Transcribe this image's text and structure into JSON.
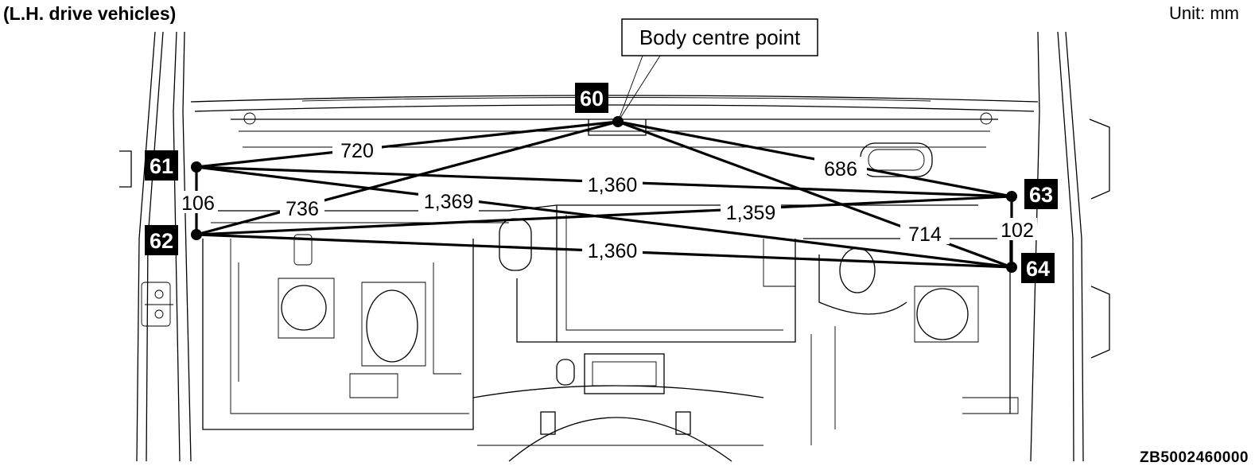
{
  "header": {
    "title": "(L.H. drive vehicles)",
    "unit": "Unit: mm"
  },
  "figure_id": "ZB5002460000",
  "callout": {
    "label": "Body centre point"
  },
  "points": [
    {
      "id": "60",
      "label": "60"
    },
    {
      "id": "61",
      "label": "61"
    },
    {
      "id": "62",
      "label": "62"
    },
    {
      "id": "63",
      "label": "63"
    },
    {
      "id": "64",
      "label": "64"
    }
  ],
  "dimensions": [
    {
      "from": "60",
      "to": "61",
      "value": "720"
    },
    {
      "from": "60",
      "to": "62",
      "value": "736"
    },
    {
      "from": "60",
      "to": "63",
      "value": "686"
    },
    {
      "from": "60",
      "to": "64",
      "value": "714"
    },
    {
      "from": "61",
      "to": "62",
      "value": "106"
    },
    {
      "from": "61",
      "to": "63",
      "value": "1,360"
    },
    {
      "from": "61",
      "to": "64",
      "value": "1,369"
    },
    {
      "from": "62",
      "to": "63",
      "value": "1,359"
    },
    {
      "from": "62",
      "to": "64",
      "value": "1,360"
    },
    {
      "from": "63",
      "to": "64",
      "value": "102"
    }
  ]
}
